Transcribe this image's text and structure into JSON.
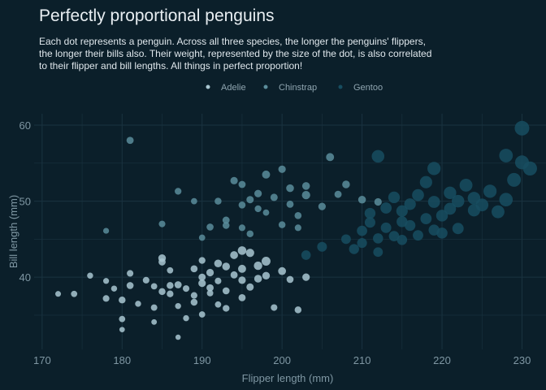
{
  "chart_data": {
    "type": "scatter",
    "title": "Perfectly proportional penguins",
    "subtitle_lines": [
      "Each dot represents a penguin. Across all three species, the longer the penguins' flippers,",
      "the longer their bills also. Their weight, represented by the size of the dot, is also correlated",
      "to their flipper and bill lengths. All things in perfect proportion!"
    ],
    "xlabel": "Flipper length (mm)",
    "ylabel": "Bill length (mm)",
    "xlim": [
      169,
      233
    ],
    "ylim": [
      30.5,
      61.5
    ],
    "x_ticks": [
      170,
      180,
      190,
      200,
      210,
      220,
      230
    ],
    "y_ticks": [
      40,
      50,
      60
    ],
    "grid": true,
    "legend_position": "top",
    "series": [
      {
        "name": "Adelie",
        "color": "#a9c7d1",
        "points": [
          [
            172,
            37.8,
            3200
          ],
          [
            174,
            37.8,
            3400
          ],
          [
            176,
            40.2,
            3300
          ],
          [
            178,
            39.5,
            3250
          ],
          [
            178,
            37.2,
            3500
          ],
          [
            179,
            38.5,
            3300
          ],
          [
            180,
            34.5,
            3400
          ],
          [
            180,
            37.0,
            3600
          ],
          [
            181,
            38.9,
            3650
          ],
          [
            181,
            40.5,
            3500
          ],
          [
            182,
            36.5,
            3300
          ],
          [
            183,
            39.6,
            3500
          ],
          [
            184,
            38.8,
            3400
          ],
          [
            184,
            36.0,
            3450
          ],
          [
            185,
            38.1,
            3600
          ],
          [
            185,
            42.0,
            3700
          ],
          [
            186,
            37.8,
            3550
          ],
          [
            186,
            40.9,
            3400
          ],
          [
            187,
            36.2,
            3300
          ],
          [
            187,
            39.0,
            3700
          ],
          [
            188,
            34.6,
            3300
          ],
          [
            188,
            38.5,
            3500
          ],
          [
            189,
            36.7,
            3600
          ],
          [
            189,
            41.1,
            3650
          ],
          [
            190,
            39.2,
            3800
          ],
          [
            190,
            35.1,
            3400
          ],
          [
            190,
            42.2,
            3550
          ],
          [
            191,
            38.6,
            3700
          ],
          [
            191,
            40.6,
            3800
          ],
          [
            191,
            37.9,
            3450
          ],
          [
            192,
            39.5,
            3500
          ],
          [
            192,
            36.4,
            3400
          ],
          [
            193,
            41.4,
            3900
          ],
          [
            193,
            38.2,
            3650
          ],
          [
            193,
            35.9,
            3550
          ],
          [
            194,
            40.3,
            3700
          ],
          [
            194,
            42.9,
            3950
          ],
          [
            195,
            39.6,
            3800
          ],
          [
            195,
            37.3,
            3700
          ],
          [
            195,
            41.1,
            4000
          ],
          [
            196,
            43.2,
            4100
          ],
          [
            196,
            38.7,
            3750
          ],
          [
            197,
            41.5,
            4150
          ],
          [
            197,
            39.8,
            3900
          ],
          [
            198,
            42.1,
            4300
          ],
          [
            198,
            40.2,
            3850
          ],
          [
            199,
            36.0,
            3500
          ],
          [
            200,
            40.8,
            3950
          ],
          [
            201,
            39.7,
            3650
          ],
          [
            202,
            35.7,
            3600
          ],
          [
            203,
            40.0,
            3800
          ],
          [
            187,
            32.1,
            3050
          ],
          [
            180,
            33.1,
            3100
          ],
          [
            184,
            34.1,
            3150
          ],
          [
            186,
            38.9,
            3600
          ],
          [
            189,
            37.6,
            3500
          ],
          [
            192,
            41.8,
            3900
          ],
          [
            185,
            42.5,
            3850
          ],
          [
            195,
            43.5,
            4200
          ],
          [
            190,
            40.0,
            3700
          ]
        ]
      },
      {
        "name": "Chinstrap",
        "color": "#5b8d9b",
        "points": [
          [
            178,
            46.1,
            3250
          ],
          [
            181,
            58.0,
            3700
          ],
          [
            185,
            47.0,
            3500
          ],
          [
            187,
            51.3,
            3550
          ],
          [
            190,
            45.2,
            3400
          ],
          [
            191,
            46.6,
            3650
          ],
          [
            192,
            50.0,
            3600
          ],
          [
            193,
            47.5,
            3700
          ],
          [
            194,
            52.7,
            3800
          ],
          [
            195,
            49.5,
            3650
          ],
          [
            195,
            46.5,
            3500
          ],
          [
            196,
            50.2,
            3750
          ],
          [
            196,
            45.7,
            3600
          ],
          [
            197,
            51.0,
            3800
          ],
          [
            197,
            49.0,
            3550
          ],
          [
            198,
            48.5,
            3400
          ],
          [
            198,
            53.5,
            4000
          ],
          [
            199,
            50.5,
            3750
          ],
          [
            200,
            46.9,
            3600
          ],
          [
            201,
            51.7,
            3900
          ],
          [
            201,
            49.6,
            3700
          ],
          [
            202,
            48.1,
            3650
          ],
          [
            203,
            50.8,
            4100
          ],
          [
            203,
            52.0,
            3900
          ],
          [
            205,
            49.3,
            3800
          ],
          [
            206,
            55.8,
            4000
          ],
          [
            207,
            50.9,
            3700
          ],
          [
            208,
            52.2,
            3900
          ],
          [
            210,
            50.2,
            3900
          ],
          [
            212,
            49.9,
            3800
          ],
          [
            189,
            50.0,
            3400
          ],
          [
            193,
            46.8,
            3600
          ],
          [
            195,
            52.2,
            3700
          ],
          [
            200,
            54.2,
            3800
          ],
          [
            202,
            46.5,
            3500
          ]
        ]
      },
      {
        "name": "Gentoo",
        "color": "#174d60",
        "points": [
          [
            203,
            42.9,
            4500
          ],
          [
            208,
            45.0,
            4550
          ],
          [
            209,
            43.7,
            4700
          ],
          [
            210,
            46.1,
            4800
          ],
          [
            210,
            44.5,
            4650
          ],
          [
            211,
            47.2,
            4900
          ],
          [
            211,
            48.4,
            5000
          ],
          [
            212,
            45.1,
            4750
          ],
          [
            212,
            43.3,
            4550
          ],
          [
            213,
            49.1,
            5100
          ],
          [
            213,
            46.5,
            4850
          ],
          [
            214,
            45.4,
            4800
          ],
          [
            214,
            50.5,
            5250
          ],
          [
            215,
            47.3,
            5000
          ],
          [
            215,
            44.9,
            4750
          ],
          [
            215,
            48.7,
            5200
          ],
          [
            216,
            46.8,
            4950
          ],
          [
            216,
            49.6,
            5250
          ],
          [
            217,
            45.5,
            4850
          ],
          [
            217,
            50.8,
            5350
          ],
          [
            218,
            47.7,
            5100
          ],
          [
            218,
            52.5,
            5500
          ],
          [
            219,
            46.2,
            5000
          ],
          [
            219,
            49.9,
            5400
          ],
          [
            220,
            48.1,
            5300
          ],
          [
            220,
            45.8,
            5050
          ],
          [
            221,
            51.1,
            5550
          ],
          [
            221,
            49.0,
            5400
          ],
          [
            222,
            46.4,
            5150
          ],
          [
            222,
            50.0,
            5600
          ],
          [
            223,
            52.1,
            5700
          ],
          [
            224,
            48.8,
            5500
          ],
          [
            224,
            50.4,
            5600
          ],
          [
            225,
            49.5,
            5650
          ],
          [
            226,
            51.3,
            5800
          ],
          [
            227,
            48.6,
            5700
          ],
          [
            228,
            50.2,
            5900
          ],
          [
            229,
            52.8,
            6000
          ],
          [
            230,
            55.1,
            6050
          ],
          [
            230,
            59.6,
            6300
          ],
          [
            231,
            54.3,
            6100
          ],
          [
            228,
            56.0,
            5950
          ],
          [
            212,
            55.9,
            5600
          ],
          [
            219,
            54.3,
            5800
          ],
          [
            205,
            44.0,
            4600
          ]
        ]
      }
    ]
  }
}
